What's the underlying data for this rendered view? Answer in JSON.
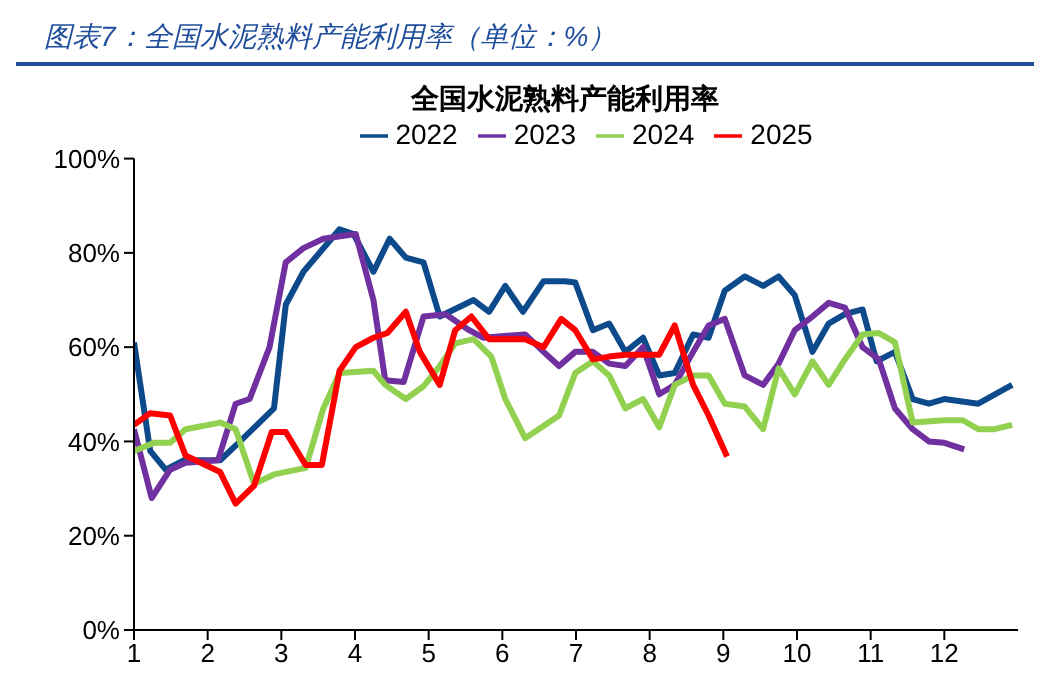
{
  "chart_data": {
    "type": "line",
    "title": "图表7：全国水泥熟料产能利用率（单位：%）",
    "subtitle": "全国水泥熟料产能利用率",
    "xlim": [
      1,
      13
    ],
    "xticks": [
      1,
      2,
      3,
      4,
      5,
      6,
      7,
      8,
      9,
      10,
      11,
      12
    ],
    "ylim": [
      0,
      100
    ],
    "yticks": [
      {
        "value": 0,
        "label": "0%"
      },
      {
        "value": 20,
        "label": "20%"
      },
      {
        "value": 40,
        "label": "40%"
      },
      {
        "value": 60,
        "label": "60%"
      },
      {
        "value": 80,
        "label": "80%"
      },
      {
        "value": 100,
        "label": "100%"
      }
    ],
    "grid": false,
    "legend": "top",
    "series": [
      {
        "name": "2022",
        "color": "#0d4a8c",
        "x": [
          1.0,
          1.22,
          1.43,
          1.68,
          2.17,
          2.44,
          2.9,
          3.06,
          3.3,
          3.79,
          3.98,
          4.25,
          4.47,
          4.69,
          4.93,
          5.15,
          5.61,
          5.82,
          6.04,
          6.28,
          6.56,
          6.85,
          6.99,
          7.23,
          7.45,
          7.67,
          7.91,
          8.13,
          8.34,
          8.59,
          8.8,
          9.02,
          9.29,
          9.54,
          9.75,
          9.97,
          10.21,
          10.43,
          10.65,
          10.89,
          11.08,
          11.33,
          11.57,
          11.79,
          12.0,
          12.46,
          12.92
        ],
        "values": [
          61,
          38,
          34,
          36,
          36,
          40,
          47,
          69,
          76,
          85,
          84,
          76,
          83,
          79,
          78,
          66.5,
          70,
          67.5,
          73,
          67.5,
          74,
          74,
          73.7,
          63.6,
          65,
          59,
          62,
          54,
          54.5,
          62.7,
          62,
          72,
          75,
          73,
          75,
          71,
          59,
          65,
          67,
          68,
          57,
          59,
          49,
          48,
          49,
          48,
          52
        ]
      },
      {
        "name": "2023",
        "color": "#7030a0",
        "x": [
          1.0,
          1.24,
          1.49,
          1.7,
          2.14,
          2.38,
          2.57,
          2.84,
          3.06,
          3.3,
          3.57,
          4.01,
          4.25,
          4.41,
          4.66,
          4.93,
          5.23,
          5.55,
          5.74,
          6.31,
          6.56,
          6.77,
          6.99,
          7.23,
          7.45,
          7.67,
          7.91,
          8.13,
          8.34,
          8.59,
          8.8,
          9.02,
          9.29,
          9.54,
          9.75,
          9.97,
          10.21,
          10.43,
          10.65,
          10.89,
          11.11,
          11.33,
          11.57,
          11.79,
          12.0,
          12.27
        ],
        "values": [
          42.6,
          28,
          34,
          35.5,
          36,
          48,
          49,
          60,
          78,
          81,
          83,
          84,
          70,
          53,
          52.6,
          66.5,
          67,
          63.6,
          62,
          62.7,
          59,
          56,
          59,
          59,
          56.5,
          56,
          60,
          50,
          52,
          59,
          64.6,
          66,
          54,
          52,
          56.5,
          63.6,
          66.5,
          69.4,
          68.4,
          60,
          57.4,
          47,
          42.6,
          40,
          39.7,
          38.3
        ]
      },
      {
        "name": "2024",
        "color": "#92d050",
        "x": [
          1.0,
          1.27,
          1.49,
          1.7,
          2.17,
          2.38,
          2.63,
          2.9,
          3.33,
          3.57,
          3.79,
          4.25,
          4.41,
          4.69,
          4.93,
          5.15,
          5.36,
          5.61,
          5.85,
          6.04,
          6.31,
          6.77,
          6.99,
          7.23,
          7.45,
          7.67,
          7.91,
          8.13,
          8.34,
          8.59,
          8.8,
          9.02,
          9.29,
          9.54,
          9.75,
          9.97,
          10.21,
          10.43,
          10.65,
          10.89,
          11.11,
          11.33,
          11.57,
          12.0,
          12.25,
          12.46,
          12.68,
          12.92
        ],
        "values": [
          38,
          39.7,
          39.7,
          42.6,
          44,
          42.6,
          31,
          33,
          34.4,
          47,
          54.5,
          55,
          52,
          49,
          51.7,
          56,
          60.8,
          61.7,
          58,
          49,
          40.7,
          45.5,
          54.5,
          57,
          54,
          47,
          49,
          43,
          52,
          54,
          54,
          48,
          47.4,
          42.6,
          55.5,
          50,
          57,
          52,
          57.4,
          62.7,
          63,
          61,
          44,
          44.5,
          44.5,
          42.6,
          42.6,
          43.5
        ]
      },
      {
        "name": "2025",
        "color": "#ff0000",
        "x": [
          1.0,
          1.22,
          1.49,
          1.7,
          2.17,
          2.38,
          2.63,
          2.87,
          3.06,
          3.33,
          3.55,
          3.79,
          4.01,
          4.25,
          4.44,
          4.69,
          4.88,
          5.15,
          5.36,
          5.58,
          5.82,
          6.31,
          6.56,
          6.8,
          6.99,
          7.23,
          7.45,
          7.67,
          8.13,
          8.34,
          8.59,
          8.8,
          9.05
        ],
        "values": [
          43.5,
          46,
          45.5,
          37,
          33.5,
          26.8,
          30.6,
          42,
          42,
          35,
          35,
          55,
          60,
          62,
          63,
          67.5,
          59,
          52,
          63.6,
          66.5,
          61.7,
          61.7,
          60,
          66,
          63.6,
          57.4,
          58,
          58.4,
          58.4,
          64.6,
          52,
          45.5,
          36.8
        ]
      }
    ]
  }
}
